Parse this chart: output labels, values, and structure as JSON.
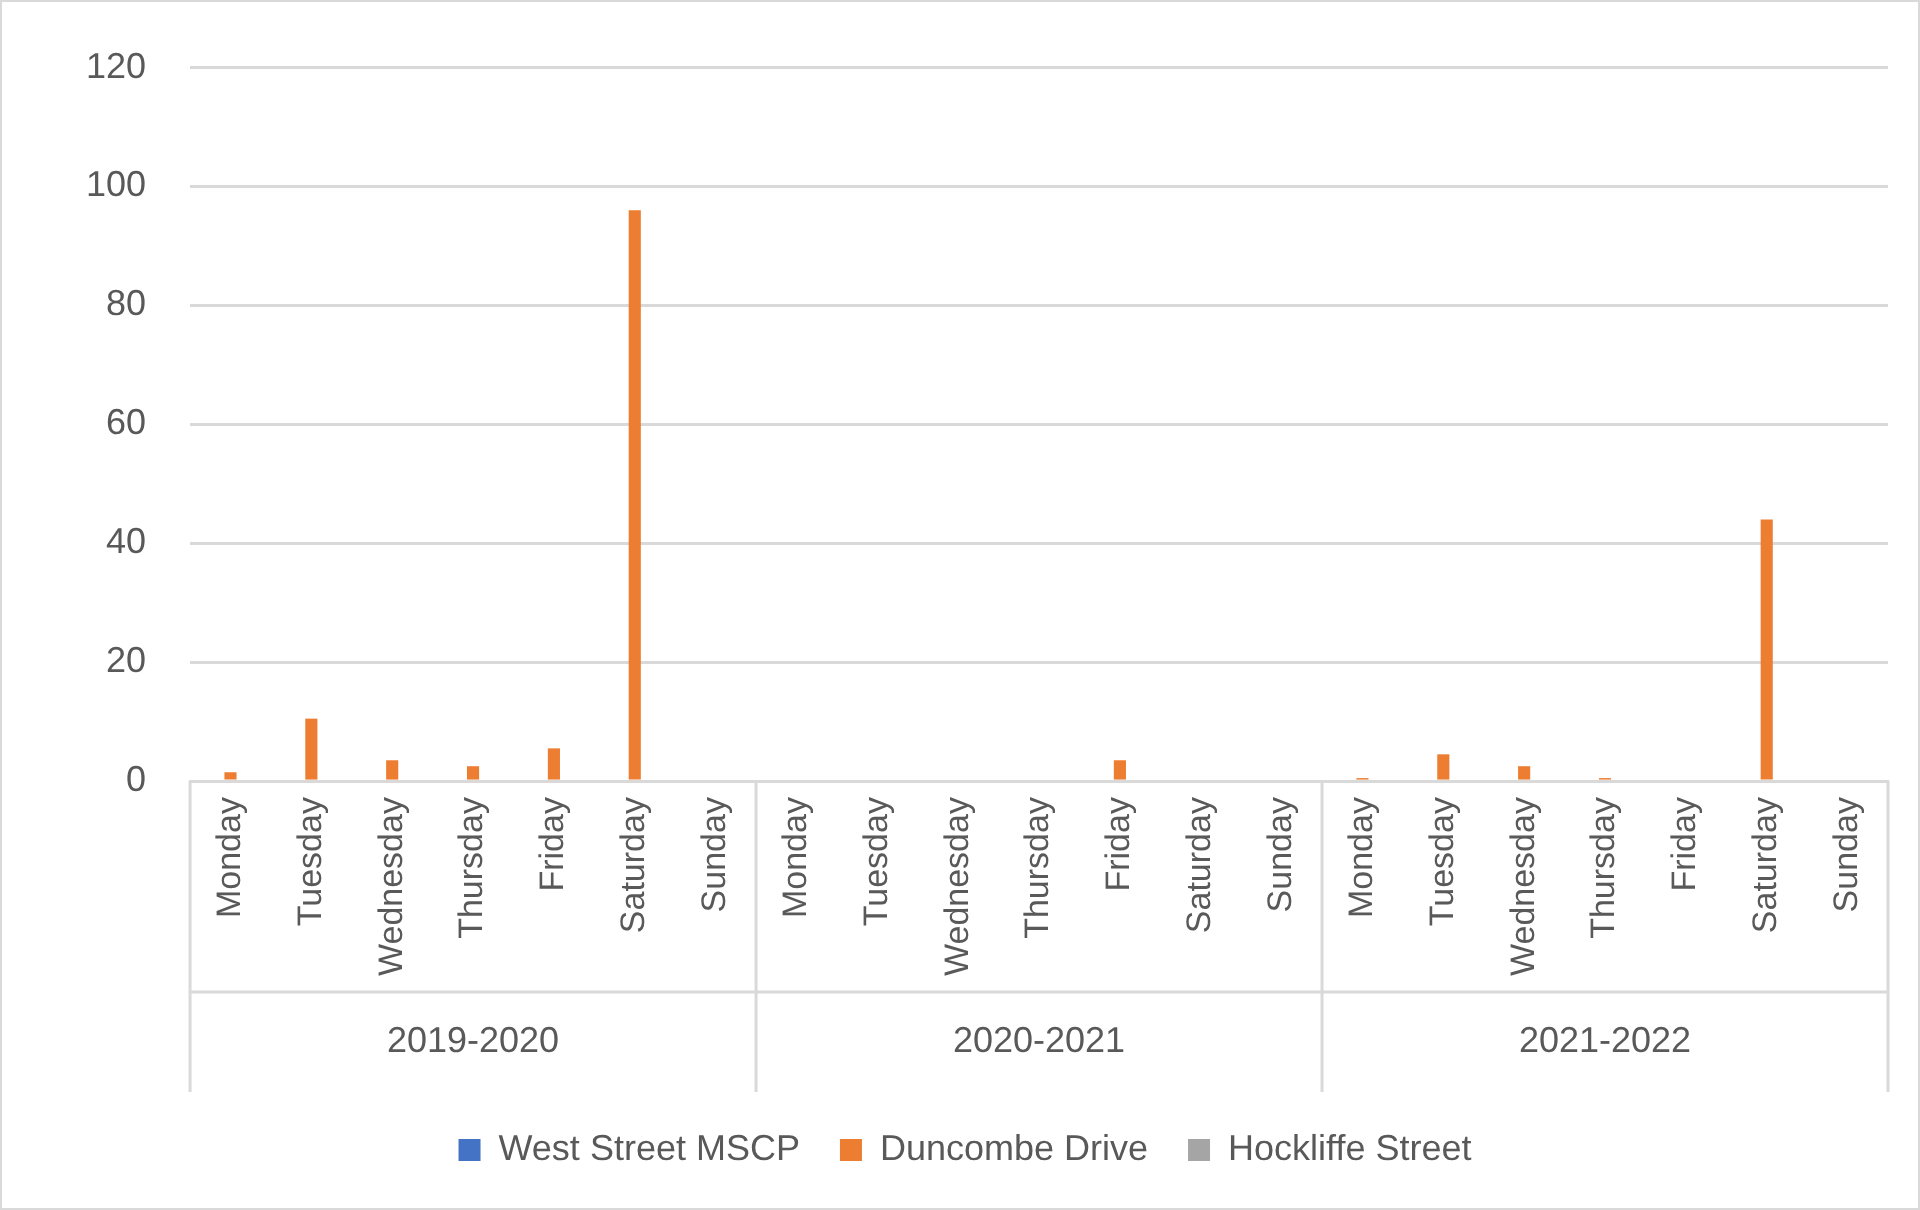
{
  "chart_data": {
    "type": "bar",
    "categories": [
      "Monday",
      "Tuesday",
      "Wednesday",
      "Thursday",
      "Friday",
      "Saturday",
      "Sunday",
      "Monday",
      "Tuesday",
      "Wednesday",
      "Thursday",
      "Friday",
      "Saturday",
      "Sunday",
      "Monday",
      "Tuesday",
      "Wednesday",
      "Thursday",
      "Friday",
      "Saturday",
      "Sunday"
    ],
    "series": [
      {
        "name": "West Street MSCP",
        "color": "#4472c4",
        "values": [
          0,
          0,
          0,
          0,
          0,
          0,
          0,
          0,
          0,
          0,
          0,
          0,
          0,
          0,
          0,
          0,
          0,
          0,
          0,
          0,
          0
        ]
      },
      {
        "name": "Duncombe Drive",
        "color": "#ed7d31",
        "values": [
          1.5,
          10.5,
          3.5,
          2.5,
          5.5,
          96,
          0,
          0,
          0,
          0,
          0,
          3.5,
          0,
          0,
          0.5,
          4.5,
          2.5,
          0.5,
          0,
          44,
          0
        ]
      },
      {
        "name": "Hockliffe Street",
        "color": "#a5a5a5",
        "values": [
          0,
          0,
          0,
          0,
          0,
          0,
          0,
          0,
          0,
          0,
          0,
          0,
          0,
          0,
          0,
          0,
          0,
          0,
          0,
          0,
          0
        ]
      }
    ],
    "annotations": [
      "2019-2020",
      "2020-2021",
      "2021-2022"
    ],
    "ylim": [
      0,
      120
    ],
    "yticks": [
      0,
      20,
      40,
      60,
      80,
      100,
      120
    ],
    "grid": "y",
    "legend": "bottom"
  }
}
